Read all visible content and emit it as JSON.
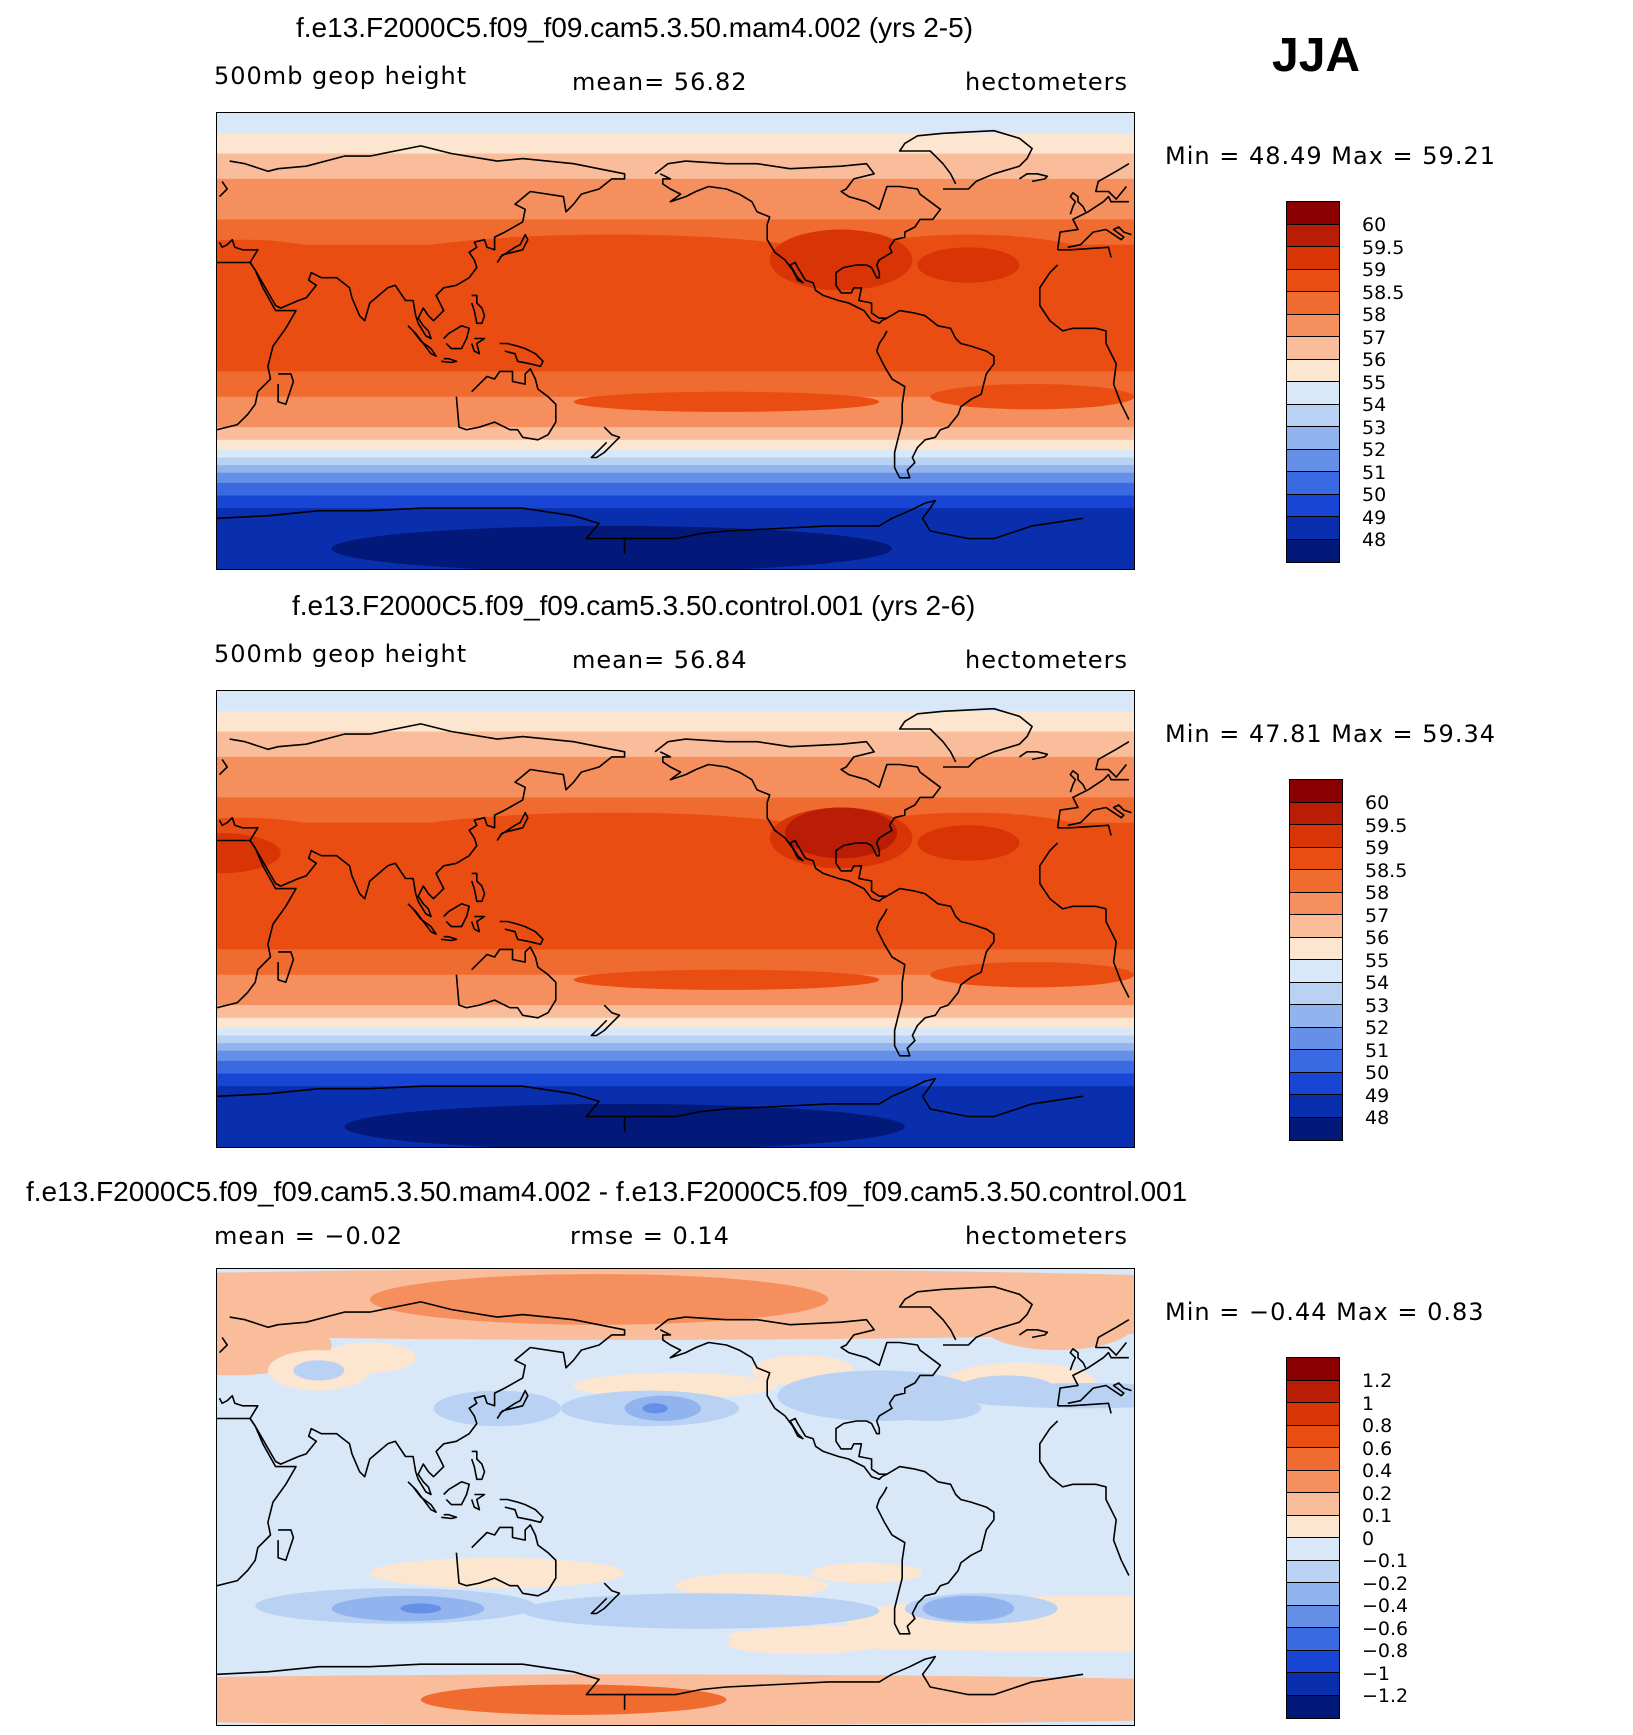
{
  "season": "JJA",
  "panels": [
    {
      "title": "f.e13.F2000C5.f09_f09.cam5.3.50.mam4.002 (yrs 2-5)",
      "variable": "500mb geop height",
      "stat": "mean=   56.82",
      "units": "hectometers",
      "minmax": "Min =   48.49  Max =   59.21",
      "colorbar": {
        "labels": [
          "60",
          "59.5",
          "59",
          "58.5",
          "58",
          "57",
          "56",
          "55",
          "54",
          "53",
          "52",
          "51",
          "50",
          "49",
          "48"
        ],
        "colors": [
          "#8b0000",
          "#b91d05",
          "#d83406",
          "#ea4d12",
          "#f06b30",
          "#f58f5e",
          "#f9bd9b",
          "#fde6d0",
          "#d9e8f8",
          "#b9d2f3",
          "#92b4ee",
          "#6690e8",
          "#3a6ae2",
          "#1845d4",
          "#0a2fae",
          "#03197a"
        ]
      },
      "field": "abs"
    },
    {
      "title": "f.e13.F2000C5.f09_f09.cam5.3.50.control.001 (yrs 2-6)",
      "variable": "500mb geop height",
      "stat": "mean=   56.84",
      "units": "hectometers",
      "minmax": "Min =   47.81  Max =   59.34",
      "colorbar": {
        "labels": [
          "60",
          "59.5",
          "59",
          "58.5",
          "58",
          "57",
          "56",
          "55",
          "54",
          "53",
          "52",
          "51",
          "50",
          "49",
          "48"
        ],
        "colors": [
          "#8b0000",
          "#b91d05",
          "#d83406",
          "#ea4d12",
          "#f06b30",
          "#f58f5e",
          "#f9bd9b",
          "#fde6d0",
          "#d9e8f8",
          "#b9d2f3",
          "#92b4ee",
          "#6690e8",
          "#3a6ae2",
          "#1845d4",
          "#0a2fae",
          "#03197a"
        ]
      },
      "field": "abs"
    },
    {
      "title": "f.e13.F2000C5.f09_f09.cam5.3.50.mam4.002 - f.e13.F2000C5.f09_f09.cam5.3.50.control.001",
      "variable": "mean =   −0.02",
      "stat": "rmse =    0.14",
      "units": "hectometers",
      "minmax": "Min =   −0.44  Max =    0.83",
      "colorbar": {
        "labels": [
          "1.2",
          "1",
          "0.8",
          "0.6",
          "0.4",
          "0.2",
          "0.1",
          "0",
          "−0.1",
          "−0.2",
          "−0.4",
          "−0.6",
          "−0.8",
          "−1",
          "−1.2"
        ],
        "colors": [
          "#8b0000",
          "#b91d05",
          "#d83406",
          "#ea4d12",
          "#f06b30",
          "#f58f5e",
          "#f9bd9b",
          "#fde6d0",
          "#d9e8f8",
          "#b9d2f3",
          "#92b4ee",
          "#6690e8",
          "#3a6ae2",
          "#1845d4",
          "#0a2fae",
          "#03197a"
        ]
      },
      "field": "diff"
    }
  ]
}
